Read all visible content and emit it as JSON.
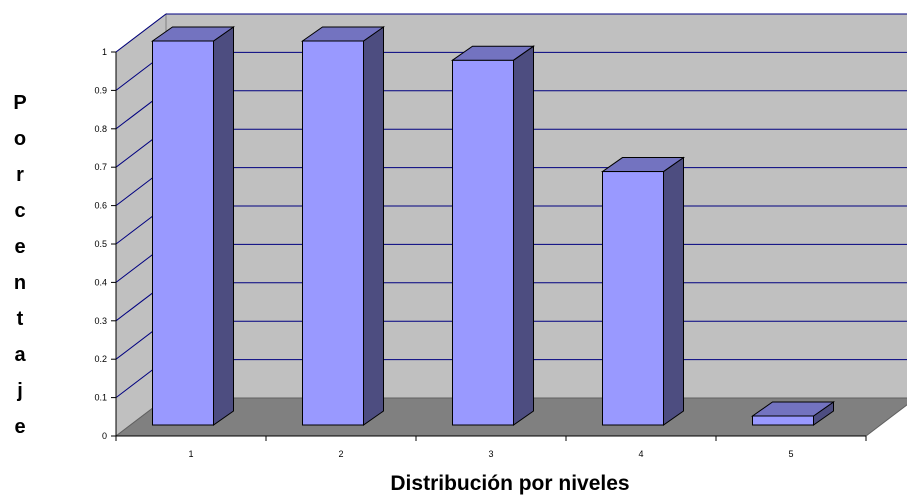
{
  "chart_data": {
    "type": "bar",
    "categories": [
      "1",
      "2",
      "3",
      "4",
      "5"
    ],
    "values": [
      1.0,
      1.0,
      0.95,
      0.66,
      0.01
    ],
    "title": "",
    "xlabel": "Distribución por niveles",
    "ylabel": "Porcentaje",
    "ylim": [
      0,
      1
    ],
    "yticks": [
      "0",
      "0.1",
      "0.2",
      "0.3",
      "0.4",
      "0.5",
      "0.6",
      "0.7",
      "0.8",
      "0.9",
      "1"
    ],
    "grid": true,
    "legend": "none",
    "colors": {
      "bar_front": "#9999ff",
      "bar_side": "#4d4d80",
      "bar_top": "#7373c0",
      "back_wall": "#c0c0c0",
      "floor": "#808080",
      "gridline": "#000080"
    }
  }
}
